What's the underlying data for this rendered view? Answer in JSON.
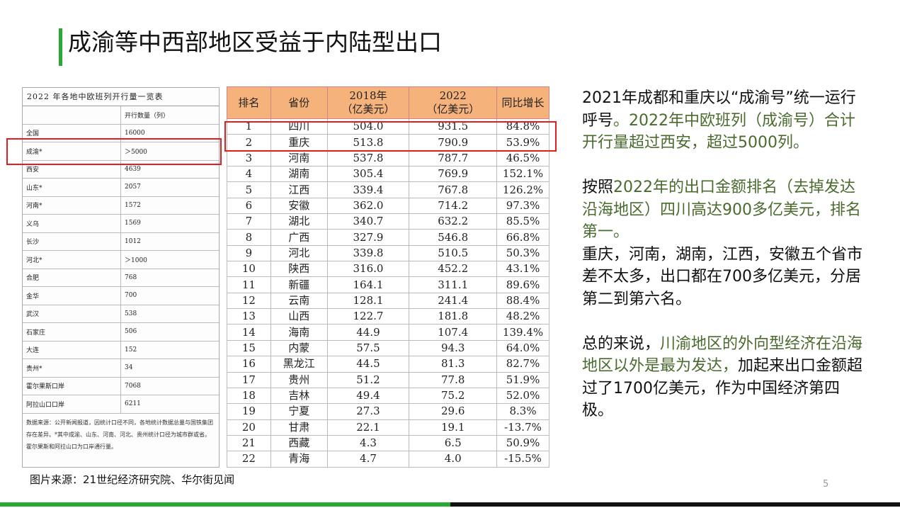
{
  "slide": {
    "title": "成渝等中西部地区受益于内陆型出口",
    "source": "图片来源：21世纪经济研究院、华尔街见闻",
    "page_number": "5"
  },
  "left_table": {
    "title": "2022 年各地中欧班列开行量一览表",
    "header": [
      "",
      "开行数量（列）"
    ],
    "rows": [
      [
        "全国",
        "16000"
      ],
      [
        "成渝*",
        "＞5000"
      ],
      [
        "西安",
        "4639"
      ],
      [
        "山东*",
        "2057"
      ],
      [
        "河南*",
        "1572"
      ],
      [
        "义乌",
        "1569"
      ],
      [
        "长沙",
        "1012"
      ],
      [
        "河北*",
        "＞1000"
      ],
      [
        "合肥",
        "768"
      ],
      [
        "金华",
        "700"
      ],
      [
        "武汉",
        "538"
      ],
      [
        "石家庄",
        "506"
      ],
      [
        "大连",
        "152"
      ],
      [
        "贵州*",
        "34"
      ],
      [
        "霍尔果斯口岸",
        "7068"
      ],
      [
        "阿拉山口口岸",
        "6211"
      ]
    ],
    "note": "数据来源：公开新闻报道，因统计口径不同，各地统计数据总量与国铁集团存在差异。*其中成渝、山东、河南、河北、贵州统计口径为城市群或省。霍尔果斯和阿拉山口为口岸通行量。"
  },
  "right_table": {
    "headers": [
      "排名",
      "省份",
      "2018年\n（亿美元）",
      "2022\n（亿美元）",
      "同比增长"
    ],
    "rows": [
      [
        "1",
        "四川",
        "504.0",
        "931.5",
        "84.8%"
      ],
      [
        "2",
        "重庆",
        "513.8",
        "790.9",
        "53.9%"
      ],
      [
        "3",
        "河南",
        "537.8",
        "787.7",
        "46.5%"
      ],
      [
        "4",
        "湖南",
        "305.4",
        "769.9",
        "152.1%"
      ],
      [
        "5",
        "江西",
        "339.4",
        "767.8",
        "126.2%"
      ],
      [
        "6",
        "安徽",
        "362.0",
        "714.2",
        "97.3%"
      ],
      [
        "7",
        "湖北",
        "340.7",
        "632.2",
        "85.5%"
      ],
      [
        "8",
        "广西",
        "327.9",
        "546.8",
        "66.8%"
      ],
      [
        "9",
        "河北",
        "339.8",
        "510.5",
        "50.3%"
      ],
      [
        "10",
        "陕西",
        "316.0",
        "452.2",
        "43.1%"
      ],
      [
        "11",
        "新疆",
        "164.1",
        "311.1",
        "89.6%"
      ],
      [
        "12",
        "云南",
        "128.1",
        "241.4",
        "88.4%"
      ],
      [
        "13",
        "山西",
        "122.7",
        "181.8",
        "48.2%"
      ],
      [
        "14",
        "海南",
        "44.9",
        "107.4",
        "139.4%"
      ],
      [
        "15",
        "内蒙",
        "57.5",
        "94.3",
        "64.0%"
      ],
      [
        "16",
        "黑龙江",
        "44.5",
        "81.3",
        "82.7%"
      ],
      [
        "17",
        "贵州",
        "51.2",
        "77.8",
        "51.9%"
      ],
      [
        "18",
        "吉林",
        "49.4",
        "75.2",
        "52.0%"
      ],
      [
        "19",
        "宁夏",
        "27.3",
        "29.6",
        "8.3%"
      ],
      [
        "20",
        "甘肃",
        "22.1",
        "19.1",
        "-13.7%"
      ],
      [
        "21",
        "西藏",
        "4.3",
        "6.5",
        "50.9%"
      ],
      [
        "22",
        "青海",
        "4.7",
        "4.0",
        "-15.5%"
      ]
    ]
  },
  "body": {
    "p1_a": "2021年成都和重庆以“成渝号”统一运行呼号",
    "p1_b": "。2022年中欧班列（成渝号）合计开行量超过西安，超过5000列。",
    "p2_a": "按照",
    "p2_b": "2022年的出口金额排名（去掉发达沿海地区）四川高达900多亿美元，排名第一。",
    "p3": "重庆，河南，湖南，江西，安徽五个省市差不太多，出口都在700多亿美元，分居第二到第六名。",
    "p4_a": "总的来说，",
    "p4_b": "川渝地区的外向型经济在沿海地区以外是最为发达，",
    "p4_c": "加起来出口金额超过了1700亿美元，作为中国经济第四极。"
  },
  "colors": {
    "accent_green": "#2aa836",
    "text_green": "#4a6b2d",
    "highlight_red": "#e02020",
    "table_header": "#f5b27a"
  }
}
